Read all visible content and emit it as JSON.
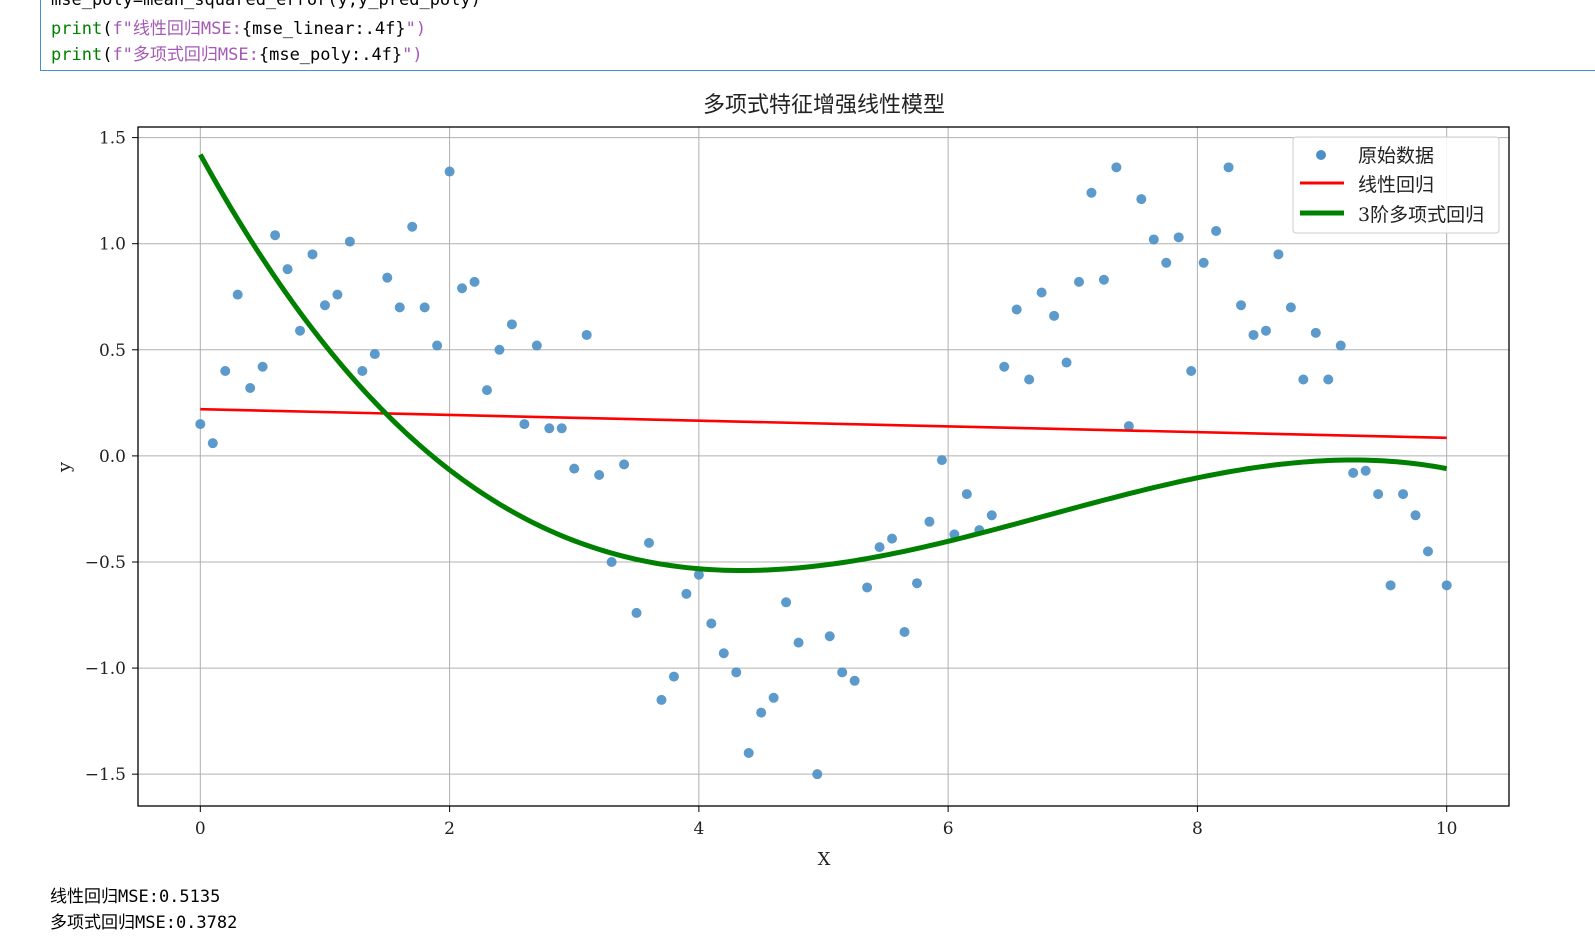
{
  "code": {
    "partial_line": "mse_poly=mean_squared_error(y,y_pred_poly)",
    "line2_fn": "print",
    "line2_str": "f\"线性回归MSE:",
    "line2_expr": "{mse_linear:.4f}",
    "line2_end": "\")",
    "line3_fn": "print",
    "line3_str": "f\"多项式回归MSE:",
    "line3_expr": "{mse_poly:.4f}",
    "line3_end": "\")"
  },
  "chart_data": {
    "type": "scatter",
    "title": "多项式特征增强线性模型",
    "xlabel": "X",
    "ylabel": "y",
    "xlim": [
      -0.5,
      10.5
    ],
    "ylim": [
      -1.65,
      1.55
    ],
    "xticks": [
      0,
      2,
      4,
      6,
      8,
      10
    ],
    "yticks": [
      1.5,
      1.0,
      0.5,
      0.0,
      -0.5,
      -1.0,
      -1.5
    ],
    "ytick_labels": [
      "1.5",
      "1.0",
      "0.5",
      "0.0",
      "−0.5",
      "−1.0",
      "−1.5"
    ],
    "grid": true,
    "legend_position": "top-right",
    "scatter": {
      "name": "原始数据",
      "color": "#4a8fc7",
      "points": [
        [
          0.0,
          0.15
        ],
        [
          0.1,
          0.06
        ],
        [
          0.2,
          0.4
        ],
        [
          0.3,
          0.76
        ],
        [
          0.4,
          0.32
        ],
        [
          0.5,
          0.42
        ],
        [
          0.6,
          1.04
        ],
        [
          0.7,
          0.88
        ],
        [
          0.8,
          0.59
        ],
        [
          0.9,
          0.95
        ],
        [
          1.0,
          0.71
        ],
        [
          1.1,
          0.76
        ],
        [
          1.2,
          1.01
        ],
        [
          1.3,
          0.4
        ],
        [
          1.4,
          0.48
        ],
        [
          1.5,
          0.84
        ],
        [
          1.6,
          0.7
        ],
        [
          1.7,
          1.08
        ],
        [
          1.8,
          0.7
        ],
        [
          1.9,
          0.52
        ],
        [
          2.0,
          1.34
        ],
        [
          2.1,
          0.79
        ],
        [
          2.2,
          0.82
        ],
        [
          2.3,
          0.31
        ],
        [
          2.4,
          0.5
        ],
        [
          2.5,
          0.62
        ],
        [
          2.6,
          0.15
        ],
        [
          2.7,
          0.52
        ],
        [
          2.8,
          0.13
        ],
        [
          2.9,
          0.13
        ],
        [
          3.0,
          -0.06
        ],
        [
          3.1,
          0.57
        ],
        [
          3.2,
          -0.09
        ],
        [
          3.3,
          -0.5
        ],
        [
          3.4,
          -0.04
        ],
        [
          3.5,
          -0.74
        ],
        [
          3.6,
          -0.41
        ],
        [
          3.7,
          -1.15
        ],
        [
          3.8,
          -1.04
        ],
        [
          3.9,
          -0.65
        ],
        [
          4.0,
          -0.56
        ],
        [
          4.1,
          -0.79
        ],
        [
          4.2,
          -0.93
        ],
        [
          4.3,
          -1.02
        ],
        [
          4.4,
          -1.4
        ],
        [
          4.5,
          -1.21
        ],
        [
          4.6,
          -1.14
        ],
        [
          4.7,
          -0.69
        ],
        [
          4.8,
          -0.88
        ],
        [
          4.95,
          -1.5
        ],
        [
          5.05,
          -0.85
        ],
        [
          5.15,
          -1.02
        ],
        [
          5.25,
          -1.06
        ],
        [
          5.35,
          -0.62
        ],
        [
          5.45,
          -0.43
        ],
        [
          5.55,
          -0.39
        ],
        [
          5.65,
          -0.83
        ],
        [
          5.75,
          -0.6
        ],
        [
          5.85,
          -0.31
        ],
        [
          5.95,
          -0.02
        ],
        [
          6.05,
          -0.37
        ],
        [
          6.15,
          -0.18
        ],
        [
          6.25,
          -0.35
        ],
        [
          6.35,
          -0.28
        ],
        [
          6.45,
          0.42
        ],
        [
          6.55,
          0.69
        ],
        [
          6.65,
          0.36
        ],
        [
          6.75,
          0.77
        ],
        [
          6.85,
          0.66
        ],
        [
          6.95,
          0.44
        ],
        [
          7.05,
          0.82
        ],
        [
          7.15,
          1.24
        ],
        [
          7.25,
          0.83
        ],
        [
          7.35,
          1.36
        ],
        [
          7.45,
          0.14
        ],
        [
          7.55,
          1.21
        ],
        [
          7.65,
          1.02
        ],
        [
          7.75,
          0.91
        ],
        [
          7.85,
          1.03
        ],
        [
          7.95,
          0.4
        ],
        [
          8.05,
          0.91
        ],
        [
          8.15,
          1.06
        ],
        [
          8.25,
          1.36
        ],
        [
          8.35,
          0.71
        ],
        [
          8.45,
          0.57
        ],
        [
          8.55,
          0.59
        ],
        [
          8.65,
          0.95
        ],
        [
          8.75,
          0.7
        ],
        [
          8.85,
          0.36
        ],
        [
          8.95,
          0.58
        ],
        [
          9.05,
          0.36
        ],
        [
          9.15,
          0.52
        ],
        [
          9.25,
          -0.08
        ],
        [
          9.35,
          -0.07
        ],
        [
          9.45,
          -0.18
        ],
        [
          9.55,
          -0.61
        ],
        [
          9.65,
          -0.18
        ],
        [
          9.75,
          -0.28
        ],
        [
          9.85,
          -0.45
        ],
        [
          10.0,
          -0.61
        ]
      ]
    },
    "linear": {
      "name": "线性回归",
      "color": "#ff0000",
      "intercept": 0.22,
      "slope": -0.0135
    },
    "poly": {
      "name": "3阶多项式回归",
      "color": "#008000",
      "coefficients": [
        1.42,
        -1.069,
        0.1807,
        -0.00886
      ]
    }
  },
  "output": {
    "line1": "线性回归MSE:0.5135",
    "line2": "多项式回归MSE:0.3782"
  }
}
